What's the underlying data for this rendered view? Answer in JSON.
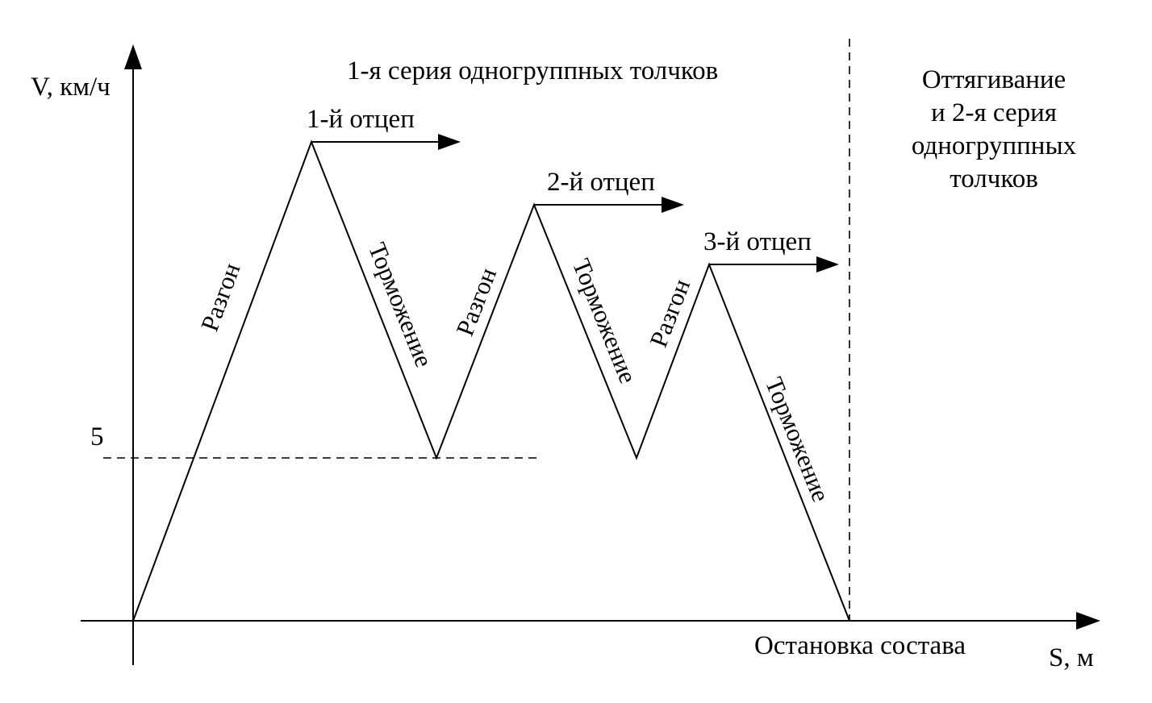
{
  "axes": {
    "y_label": "V, км/ч",
    "x_label": "S, м",
    "y_tick": "5"
  },
  "regions": {
    "series_1": "1-я серия одногруппных толчков",
    "pullback_lines": [
      "Оттягивание",
      "и 2-я серия",
      "одногруппных",
      "толчков"
    ]
  },
  "cuts": [
    "1-й отцеп",
    "2-й отцеп",
    "3-й отцеп"
  ],
  "phases": {
    "acceleration": "Разгон",
    "braking": "Торможение"
  },
  "stop_label": "Остановка состава"
}
